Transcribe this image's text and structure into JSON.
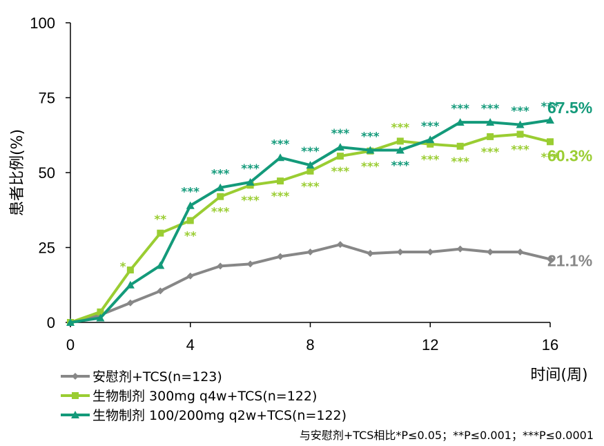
{
  "chart_data": {
    "type": "line",
    "ylabel": "患者比例(%)",
    "xlabel": "时间(周)",
    "xlim": [
      0,
      16
    ],
    "ylim": [
      0,
      100
    ],
    "x_ticks": [
      0,
      4,
      8,
      12,
      16
    ],
    "y_ticks": [
      0,
      25,
      50,
      75,
      100
    ],
    "x": [
      0,
      1,
      2,
      3,
      4,
      5,
      6,
      7,
      8,
      9,
      10,
      11,
      12,
      13,
      14,
      15,
      16
    ],
    "series": [
      {
        "name": "安慰剂+TCS(n=123)",
        "color": "#878787",
        "marker": "diamond",
        "values": [
          0,
          2.5,
          6.5,
          10.5,
          15.5,
          18.8,
          19.5,
          22,
          23.5,
          26,
          23,
          23.5,
          23.5,
          24.5,
          23.5,
          23.5,
          21.1
        ],
        "end_label": "21.1%"
      },
      {
        "name": "生物制剂 300mg q4w+TCS(n=122)",
        "color": "#9acd32",
        "marker": "square",
        "values": [
          0,
          3.5,
          17.5,
          29.8,
          34,
          42,
          45.8,
          47.2,
          50.5,
          55.5,
          57.2,
          60.5,
          59.5,
          58.8,
          62,
          62.8,
          60.3
        ],
        "end_label": "60.3%",
        "significance": [
          {
            "x": 1.75,
            "text": "*",
            "pos": "above"
          },
          {
            "x": 3,
            "text": "**",
            "pos": "above"
          },
          {
            "x": 4,
            "text": "**",
            "pos": "below"
          },
          {
            "x": 5,
            "text": "***",
            "pos": "below"
          },
          {
            "x": 6,
            "text": "***",
            "pos": "below"
          },
          {
            "x": 7,
            "text": "***",
            "pos": "below"
          },
          {
            "x": 8,
            "text": "***",
            "pos": "below"
          },
          {
            "x": 9,
            "text": "***",
            "pos": "below"
          },
          {
            "x": 10,
            "text": "***",
            "pos": "below"
          },
          {
            "x": 11,
            "text": "***",
            "pos": "above"
          },
          {
            "x": 12,
            "text": "***",
            "pos": "below"
          },
          {
            "x": 13,
            "text": "***",
            "pos": "below"
          },
          {
            "x": 14,
            "text": "***",
            "pos": "below"
          },
          {
            "x": 15,
            "text": "***",
            "pos": "below"
          },
          {
            "x": 16,
            "text": "***",
            "pos": "below"
          }
        ]
      },
      {
        "name": "生物制剂 100/200mg q2w+TCS(n=122)",
        "color": "#139a7a",
        "marker": "triangle",
        "values": [
          0,
          1.5,
          12.5,
          19,
          39,
          45,
          46.8,
          55,
          52.5,
          58.5,
          57.5,
          57.5,
          61,
          66.8,
          66.8,
          66,
          67.5
        ],
        "end_label": "67.5%",
        "significance": [
          {
            "x": 4,
            "text": "***",
            "pos": "above"
          },
          {
            "x": 5,
            "text": "***",
            "pos": "above"
          },
          {
            "x": 6,
            "text": "***",
            "pos": "above"
          },
          {
            "x": 7,
            "text": "***",
            "pos": "above"
          },
          {
            "x": 8,
            "text": "***",
            "pos": "above"
          },
          {
            "x": 9,
            "text": "***",
            "pos": "above"
          },
          {
            "x": 10,
            "text": "***",
            "pos": "above"
          },
          {
            "x": 11,
            "text": "***",
            "pos": "below"
          },
          {
            "x": 12,
            "text": "***",
            "pos": "above"
          },
          {
            "x": 13,
            "text": "***",
            "pos": "above"
          },
          {
            "x": 14,
            "text": "***",
            "pos": "above"
          },
          {
            "x": 15,
            "text": "***",
            "pos": "above"
          },
          {
            "x": 16,
            "text": "***",
            "pos": "above"
          }
        ]
      }
    ],
    "legend_placement": "bottom-left",
    "grid": false
  },
  "footnote": "与安慰剂+TCS相比*P≤0.05；**P≤0.001；***P≤0.0001"
}
